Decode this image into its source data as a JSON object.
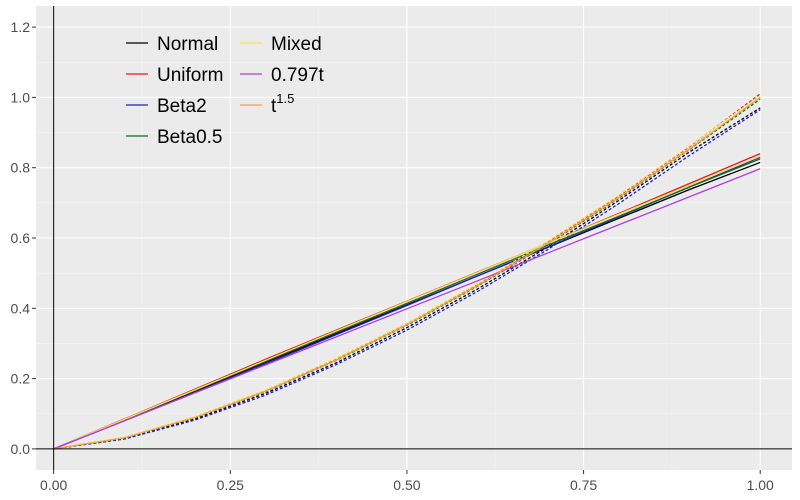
{
  "chart_data": {
    "type": "line",
    "title": "",
    "xlabel": "",
    "ylabel": "",
    "xlim": [
      -0.025,
      1.045
    ],
    "ylim": [
      -0.06,
      1.26
    ],
    "grid": true,
    "legend_position": "top-left",
    "x_ticks": [
      0,
      0.25,
      0.5,
      0.75,
      1
    ],
    "x_tick_labels": [
      "0.00",
      "0.25",
      "0.50",
      "0.75",
      "1.00"
    ],
    "y_ticks": [
      0,
      0.2,
      0.4,
      0.6,
      0.8,
      1.0,
      1.2
    ],
    "y_tick_labels": [
      "0.0",
      "0.2",
      "0.4",
      "0.6",
      "0.8",
      "1.0",
      "1.2"
    ],
    "x": [
      0,
      0.1,
      0.2,
      0.3,
      0.4,
      0.5,
      0.6,
      0.7,
      0.8,
      0.9,
      1.0
    ],
    "series": [
      {
        "name": "Normal",
        "color": "#000000",
        "line": "solid",
        "values": [
          0,
          0.082,
          0.164,
          0.246,
          0.328,
          0.41,
          0.492,
          0.574,
          0.656,
          0.738,
          0.815
        ]
      },
      {
        "name": "Normal",
        "color": "#000000",
        "line": "dashed",
        "show_in_legend": false,
        "values": [
          0,
          0.029,
          0.085,
          0.158,
          0.245,
          0.345,
          0.455,
          0.575,
          0.707,
          0.845,
          0.97
        ]
      },
      {
        "name": "Uniform",
        "color": "#e41a1c",
        "line": "solid",
        "values": [
          0,
          0.085,
          0.17,
          0.255,
          0.338,
          0.42,
          0.503,
          0.585,
          0.67,
          0.755,
          0.84
        ]
      },
      {
        "name": "Uniform",
        "color": "#e41a1c",
        "line": "dashed",
        "show_in_legend": false,
        "values": [
          0,
          0.032,
          0.09,
          0.165,
          0.255,
          0.355,
          0.468,
          0.59,
          0.72,
          0.86,
          1.01
        ]
      },
      {
        "name": "Beta2",
        "color": "#2020c8",
        "line": "solid",
        "values": [
          0,
          0.08,
          0.16,
          0.242,
          0.325,
          0.408,
          0.492,
          0.575,
          0.66,
          0.745,
          0.83
        ]
      },
      {
        "name": "Beta2",
        "color": "#2020c8",
        "line": "dashed",
        "show_in_legend": false,
        "values": [
          0,
          0.028,
          0.082,
          0.153,
          0.24,
          0.338,
          0.448,
          0.568,
          0.698,
          0.835,
          0.965
        ]
      },
      {
        "name": "Beta0.5",
        "color": "#1a6b1a",
        "line": "solid",
        "values": [
          0,
          0.083,
          0.166,
          0.249,
          0.332,
          0.414,
          0.497,
          0.58,
          0.662,
          0.745,
          0.825
        ]
      },
      {
        "name": "Beta0.5",
        "color": "#1a6b1a",
        "line": "dashed",
        "show_in_legend": false,
        "values": [
          0,
          0.031,
          0.089,
          0.163,
          0.252,
          0.352,
          0.463,
          0.583,
          0.713,
          0.852,
          0.995
        ]
      },
      {
        "name": "Mixed",
        "color": "#f2e15a",
        "line": "solid",
        "values": [
          0,
          0.084,
          0.168,
          0.252,
          0.336,
          0.419,
          0.502,
          0.585,
          0.668,
          0.75,
          0.833
        ]
      },
      {
        "name": "Mixed",
        "color": "#f2e15a",
        "line": "dashed",
        "show_in_legend": false,
        "values": [
          0,
          0.033,
          0.092,
          0.168,
          0.258,
          0.358,
          0.47,
          0.592,
          0.722,
          0.862,
          1.005
        ]
      },
      {
        "name": "0.797t",
        "color": "#b03de0",
        "line": "solid",
        "values": [
          0,
          0.0797,
          0.1594,
          0.2391,
          0.3188,
          0.3985,
          0.4782,
          0.5579,
          0.6376,
          0.7173,
          0.797
        ]
      },
      {
        "name": "t1.5",
        "color": "#f2a33a",
        "line": "solid",
        "values": [
          0,
          0.0316,
          0.0894,
          0.1643,
          0.253,
          0.3536,
          0.4648,
          0.5857,
          0.7155,
          0.8538,
          1.0
        ]
      }
    ],
    "legend": {
      "columns": [
        [
          {
            "label": "Normal",
            "color": "#000000"
          },
          {
            "label": "Uniform",
            "color": "#e41a1c"
          },
          {
            "label": "Beta2",
            "color": "#2020c8"
          },
          {
            "label": "Beta0.5",
            "color": "#1a6b1a"
          }
        ],
        [
          {
            "label": "Mixed",
            "color": "#f2e15a"
          },
          {
            "label": "0.797t",
            "color": "#b03de0"
          },
          {
            "label": "t",
            "superscript": "1.5",
            "color": "#f2a33a"
          }
        ]
      ]
    },
    "colors": {
      "panel_background": "#ebebeb",
      "major_grid": "#ffffff",
      "minor_grid": "#f5f5f5",
      "axis_line": "#000000",
      "tick_label": "#4d4d4d"
    }
  }
}
